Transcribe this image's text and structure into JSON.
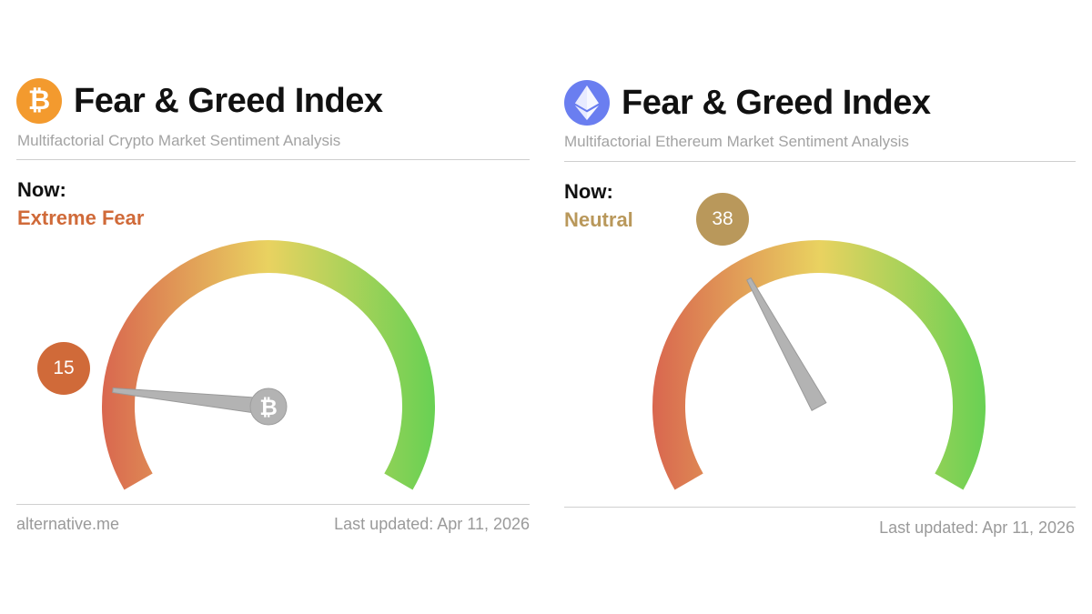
{
  "widgets": [
    {
      "coin": "bitcoin",
      "logo_icon": "bitcoin-icon",
      "logo_glyph": "₿",
      "title": "Fear & Greed Index",
      "subtitle": "Multifactorial Crypto Market Sentiment Analysis",
      "now_label": "Now:",
      "sentiment": "Extreme Fear",
      "value": 15,
      "value_text": "15",
      "hub_glyph": "₿",
      "footer_site": "alternative.me",
      "last_updated": "Last updated: Apr 11, 2026",
      "accent_color": "#d06a39"
    },
    {
      "coin": "ethereum",
      "logo_icon": "ethereum-icon",
      "logo_glyph": "◆",
      "title": "Fear & Greed Index",
      "subtitle": "Multifactorial Ethereum Market Sentiment Analysis",
      "now_label": "Now:",
      "sentiment": "Neutral",
      "value": 38,
      "value_text": "38",
      "last_updated": "Last updated: Apr 11, 2026",
      "accent_color": "#b9985b"
    }
  ],
  "gauge_colors": {
    "fear": "#d9674f",
    "mid": "#e9d260",
    "greed": "#68d153",
    "needle": "#b3b3b3"
  }
}
